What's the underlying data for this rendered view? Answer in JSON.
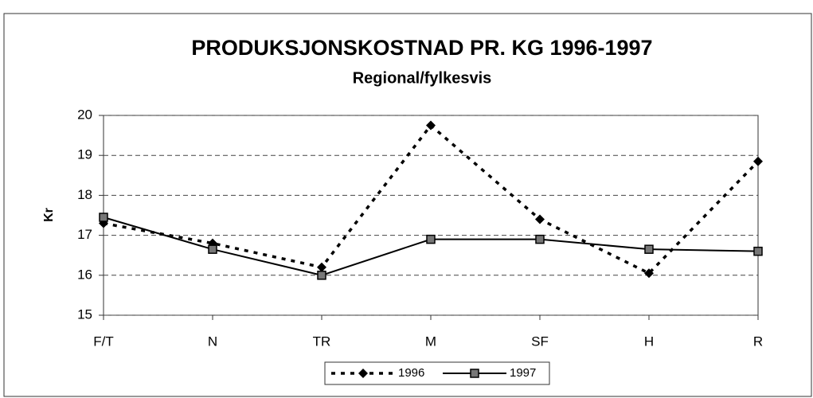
{
  "chart_data": {
    "type": "line",
    "title": "PRODUKSJONSKOSTNAD PR. KG 1996-1997",
    "subtitle": "Regional/fylkesvis",
    "y_label": "Kr",
    "categories": [
      "F/T",
      "N",
      "TR",
      "M",
      "SF",
      "H",
      "R"
    ],
    "series": [
      {
        "name": "1996",
        "color": "#000000",
        "linestyle": "dotted",
        "marker": "diamond",
        "values": [
          17.3,
          16.8,
          16.2,
          19.75,
          17.4,
          16.05,
          18.85
        ]
      },
      {
        "name": "1997",
        "color": "#000000",
        "linestyle": "solid",
        "marker": "square",
        "values": [
          17.45,
          16.65,
          16.0,
          16.9,
          16.9,
          16.65,
          16.6
        ]
      }
    ],
    "ylim": [
      15,
      20
    ],
    "yticks": [
      15,
      16,
      17,
      18,
      19,
      20
    ],
    "grid": true,
    "legend": "bottom"
  }
}
